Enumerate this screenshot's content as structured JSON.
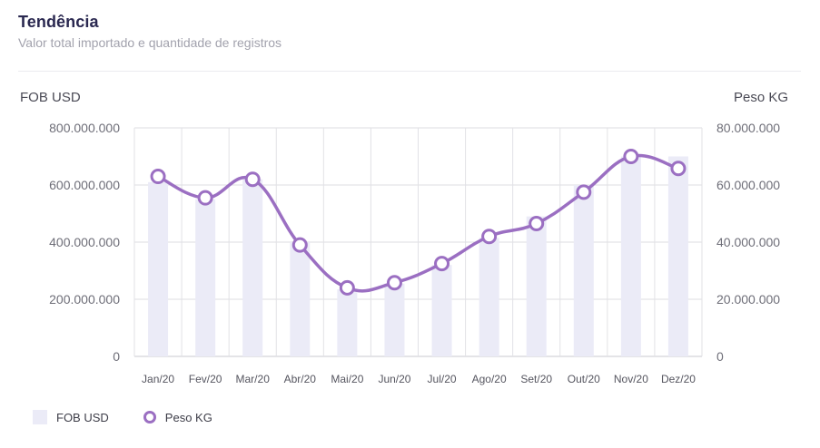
{
  "header": {
    "title": "Tendência",
    "subtitle": "Valor total importado e quantidade de registros"
  },
  "chart_data": {
    "type": "bar",
    "categories": [
      "Jan/20",
      "Fev/20",
      "Mar/20",
      "Abr/20",
      "Mai/20",
      "Jun/20",
      "Jul/20",
      "Ago/20",
      "Set/20",
      "Out/20",
      "Nov/20",
      "Dez/20"
    ],
    "series": [
      {
        "name": "FOB USD",
        "chart_type": "bar",
        "axis": "left",
        "color": "#ebebf7",
        "values": [
          610000000,
          550000000,
          620000000,
          400000000,
          235000000,
          255000000,
          320000000,
          415000000,
          490000000,
          600000000,
          700000000,
          700000000
        ]
      },
      {
        "name": "Peso KG",
        "chart_type": "line",
        "axis": "right",
        "color": "#9b6fc2",
        "smooth": true,
        "values": [
          63000000,
          55500000,
          62000000,
          39000000,
          24000000,
          25800000,
          32500000,
          42000000,
          46500000,
          57500000,
          70000000,
          65800000
        ]
      }
    ],
    "ylabel": "FOB USD",
    "ylabel_right": "Peso KG",
    "ylim": [
      0,
      800000000
    ],
    "ylim_right": [
      0,
      80000000
    ],
    "yticks": [
      "0",
      "200.000.000",
      "400.000.000",
      "600.000.000",
      "800.000.000"
    ],
    "yticks_right": [
      "0",
      "20.000.000",
      "40.000.000",
      "60.000.000",
      "80.000.000"
    ],
    "grid": true,
    "legend_position": "bottom-left"
  }
}
